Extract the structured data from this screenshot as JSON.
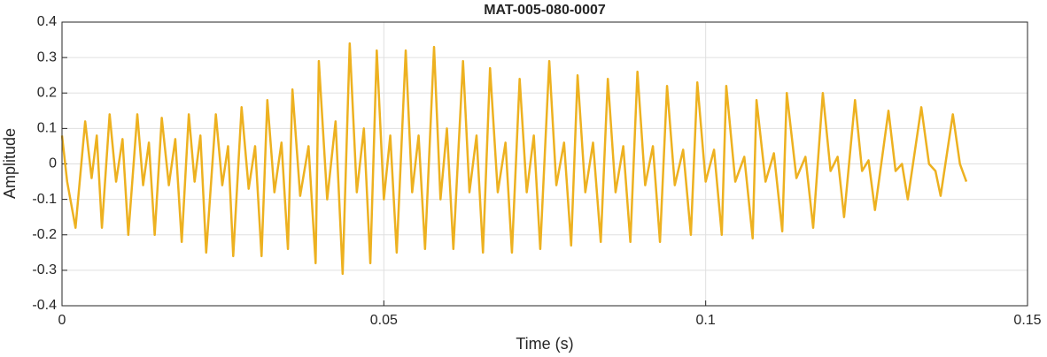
{
  "chart_data": {
    "type": "line",
    "title": "MAT-005-080-0007",
    "xlabel": "Time (s)",
    "ylabel": "Amplitude",
    "x": [
      0,
      0.0008,
      0.0021,
      0.0036,
      0.0046,
      0.0054,
      0.0062,
      0.0074,
      0.0084,
      0.0094,
      0.0103,
      0.0117,
      0.0126,
      0.0135,
      0.0144,
      0.0155,
      0.0166,
      0.0176,
      0.0186,
      0.0197,
      0.0206,
      0.0215,
      0.0224,
      0.0239,
      0.0249,
      0.0258,
      0.0266,
      0.0279,
      0.029,
      0.03,
      0.031,
      0.0319,
      0.033,
      0.0341,
      0.0351,
      0.0358,
      0.037,
      0.0383,
      0.0394,
      0.0399,
      0.0412,
      0.0425,
      0.0436,
      0.0447,
      0.0458,
      0.0469,
      0.0479,
      0.0489,
      0.05,
      0.051,
      0.052,
      0.0534,
      0.0544,
      0.0554,
      0.0564,
      0.0578,
      0.0588,
      0.0598,
      0.0608,
      0.0623,
      0.0633,
      0.0644,
      0.0654,
      0.0665,
      0.0677,
      0.0689,
      0.0699,
      0.0711,
      0.0722,
      0.0733,
      0.0743,
      0.0757,
      0.0768,
      0.078,
      0.0791,
      0.0801,
      0.0813,
      0.0825,
      0.0837,
      0.0848,
      0.086,
      0.0872,
      0.0883,
      0.0894,
      0.0906,
      0.0918,
      0.0929,
      0.094,
      0.0952,
      0.0965,
      0.0977,
      0.0987,
      0.1,
      0.1013,
      0.1025,
      0.1032,
      0.1046,
      0.106,
      0.1073,
      0.1079,
      0.1093,
      0.1106,
      0.1119,
      0.1126,
      0.1141,
      0.1155,
      0.1167,
      0.1182,
      0.1194,
      0.1205,
      0.1215,
      0.1232,
      0.1243,
      0.1253,
      0.1263,
      0.1284,
      0.1295,
      0.1305,
      0.1314,
      0.1335,
      0.1347,
      0.1357,
      0.1365,
      0.1384,
      0.1395,
      0.1405
    ],
    "series": [
      {
        "color": "#EDB120",
        "values": [
          0.08,
          -0.05,
          -0.18,
          0.12,
          -0.04,
          0.08,
          -0.18,
          0.14,
          -0.05,
          0.07,
          -0.2,
          0.14,
          -0.06,
          0.06,
          -0.2,
          0.13,
          -0.06,
          0.07,
          -0.22,
          0.14,
          -0.05,
          0.08,
          -0.25,
          0.14,
          -0.06,
          0.05,
          -0.26,
          0.16,
          -0.07,
          0.05,
          -0.26,
          0.18,
          -0.08,
          0.06,
          -0.24,
          0.21,
          -0.09,
          0.05,
          -0.28,
          0.29,
          -0.1,
          0.12,
          -0.31,
          0.34,
          -0.08,
          0.1,
          -0.28,
          0.32,
          -0.1,
          0.08,
          -0.25,
          0.32,
          -0.08,
          0.08,
          -0.24,
          0.33,
          -0.1,
          0.1,
          -0.24,
          0.29,
          -0.08,
          0.08,
          -0.25,
          0.27,
          -0.08,
          0.06,
          -0.25,
          0.24,
          -0.08,
          0.08,
          -0.24,
          0.29,
          -0.06,
          0.06,
          -0.23,
          0.25,
          -0.08,
          0.06,
          -0.22,
          0.24,
          -0.08,
          0.05,
          -0.22,
          0.26,
          -0.06,
          0.05,
          -0.22,
          0.22,
          -0.06,
          0.04,
          -0.2,
          0.23,
          -0.05,
          0.04,
          -0.2,
          0.22,
          -0.05,
          0.02,
          -0.21,
          0.18,
          -0.05,
          0.03,
          -0.19,
          0.2,
          -0.04,
          0.02,
          -0.18,
          0.2,
          -0.02,
          0.02,
          -0.15,
          0.18,
          -0.02,
          0.01,
          -0.13,
          0.15,
          -0.02,
          0.0,
          -0.1,
          0.16,
          0.0,
          -0.02,
          -0.09,
          0.14,
          0.0,
          -0.05
        ]
      }
    ],
    "xlim": [
      0,
      0.15
    ],
    "xticks": [
      0,
      0.05,
      0.1,
      0.15
    ],
    "ylim": [
      -0.4,
      0.4
    ],
    "yticks": [
      -0.4,
      -0.3,
      -0.2,
      -0.1,
      0,
      0.1,
      0.2,
      0.3,
      0.4
    ],
    "grid": true
  }
}
